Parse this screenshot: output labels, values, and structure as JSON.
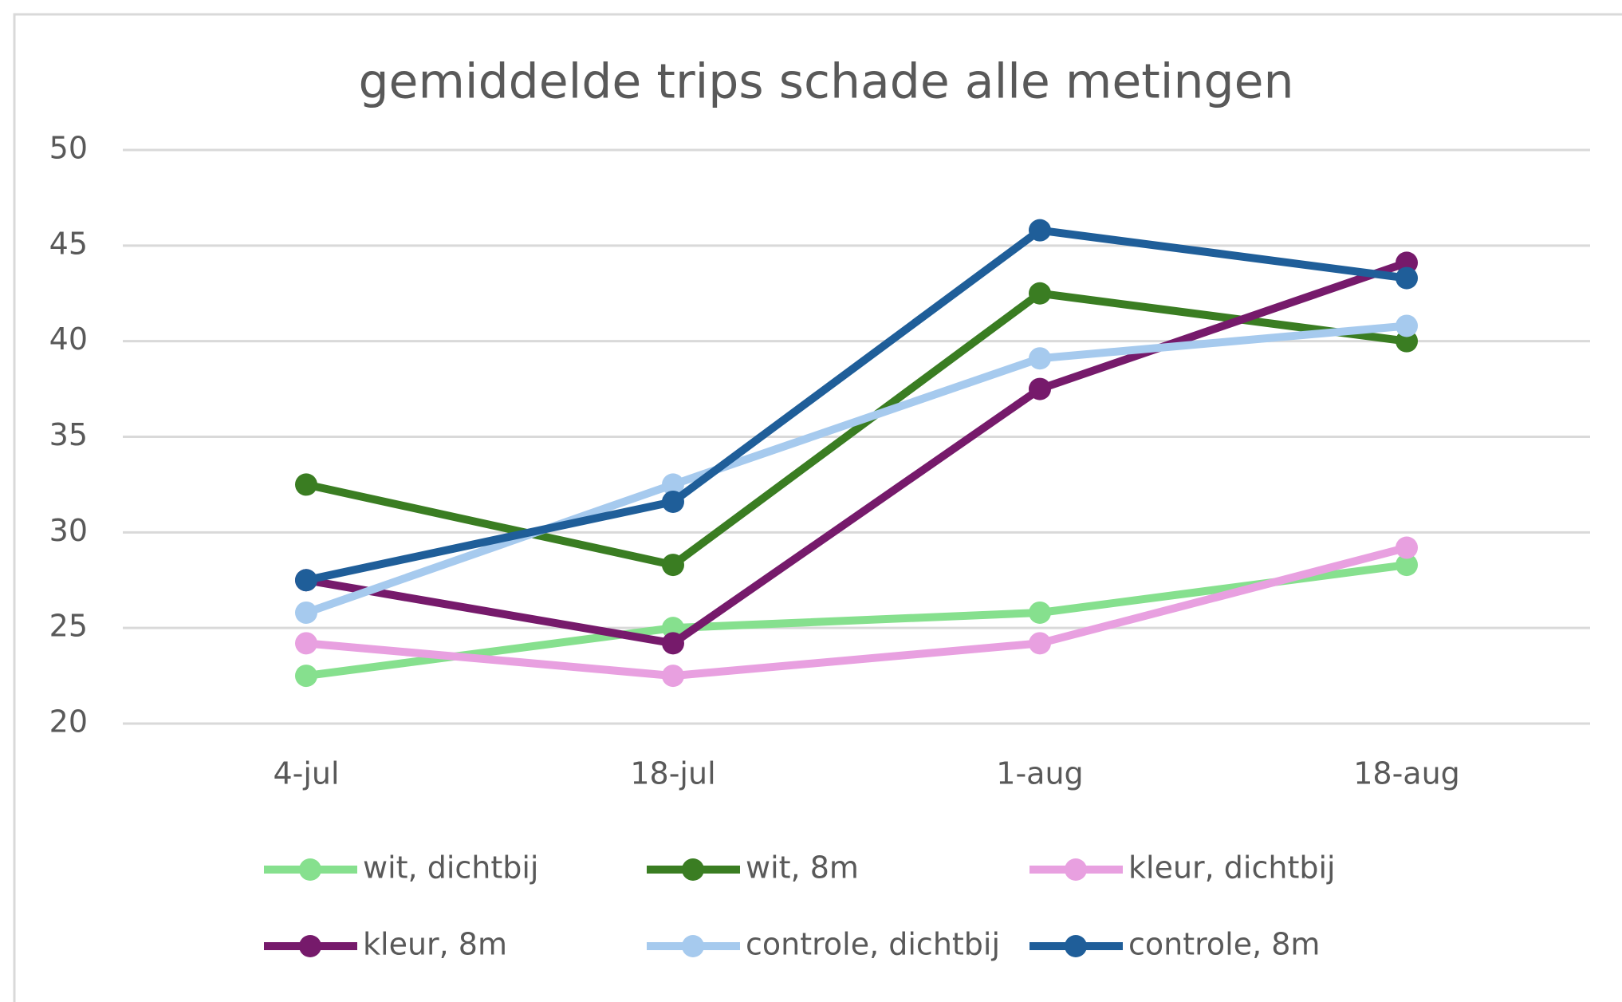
{
  "chart_data": {
    "type": "line",
    "title": "gemiddelde trips schade alle metingen",
    "categories": [
      "4-jul",
      "18-jul",
      "1-aug",
      "18-aug"
    ],
    "series": [
      {
        "name": "wit, dichtbij",
        "color": "#86e08e",
        "values": [
          22.5,
          25.0,
          25.8,
          28.3
        ]
      },
      {
        "name": "wit, 8m",
        "color": "#3a7d22",
        "values": [
          32.5,
          28.3,
          42.5,
          40.0
        ]
      },
      {
        "name": "kleur, dichtbij",
        "color": "#e8a0e0",
        "values": [
          24.2,
          22.5,
          24.2,
          29.2
        ]
      },
      {
        "name": "kleur, 8m",
        "color": "#761a6b",
        "values": [
          27.5,
          24.2,
          37.5,
          44.1
        ]
      },
      {
        "name": "controle, dichtbij",
        "color": "#a6caee",
        "values": [
          25.8,
          32.5,
          39.1,
          40.8
        ]
      },
      {
        "name": "controle, 8m",
        "color": "#1f5e99",
        "values": [
          27.5,
          31.6,
          45.8,
          43.3
        ]
      }
    ],
    "ylim": [
      20,
      50
    ],
    "yticks": [
      20,
      25,
      30,
      35,
      40,
      45,
      50
    ],
    "grid": true,
    "legend": "bottom"
  }
}
